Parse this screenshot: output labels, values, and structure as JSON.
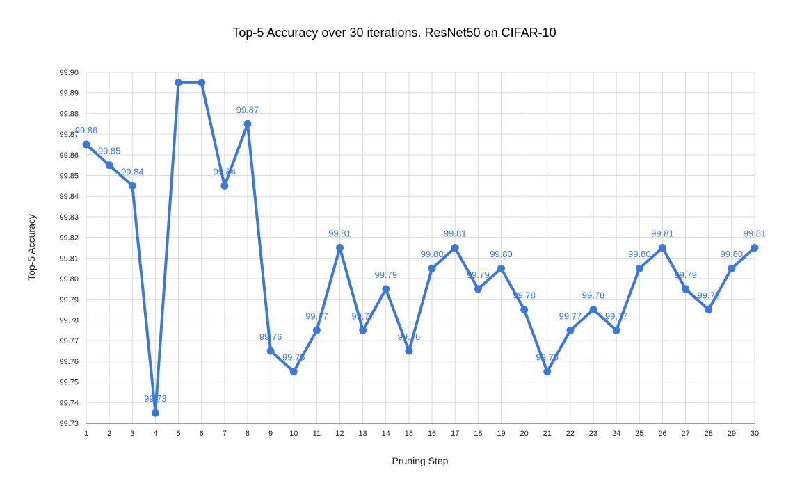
{
  "chart_data": {
    "type": "line",
    "title": "Top-5 Accuracy over 30 iterations. ResNet50 on CIFAR-10",
    "xlabel": "Pruning Step",
    "ylabel": "Top-5 Accuracy",
    "x": [
      1,
      2,
      3,
      4,
      5,
      6,
      7,
      8,
      9,
      10,
      11,
      12,
      13,
      14,
      15,
      16,
      17,
      18,
      19,
      20,
      21,
      22,
      23,
      24,
      25,
      26,
      27,
      28,
      29,
      30
    ],
    "series": [
      {
        "values": [
          99.865,
          99.855,
          99.845,
          99.735,
          99.895,
          99.895,
          99.845,
          99.875,
          99.765,
          99.755,
          99.775,
          99.815,
          99.775,
          99.795,
          99.765,
          99.805,
          99.815,
          99.795,
          99.805,
          99.785,
          99.755,
          99.775,
          99.785,
          99.775,
          99.805,
          99.815,
          99.795,
          99.785,
          99.805,
          99.815
        ],
        "labels": [
          "99.86",
          "99.85",
          "99.84",
          "99.73",
          "",
          "",
          "99.84",
          "99.87",
          "99.76",
          "99.75",
          "99.77",
          "99.81",
          "99.77",
          "99.79",
          "99.76",
          "99.80",
          "99.81",
          "99.79",
          "99.80",
          "99.78",
          "99.75",
          "99.77",
          "99.78",
          "99.77",
          "99.80",
          "99.81",
          "99.79",
          "99.78",
          "99.80",
          "99.81"
        ]
      }
    ],
    "ylim": [
      99.73,
      99.9
    ],
    "yticks": [
      "99.73",
      "99.74",
      "99.75",
      "99.76",
      "99.77",
      "99.78",
      "99.79",
      "99.80",
      "99.81",
      "99.82",
      "99.83",
      "99.84",
      "99.85",
      "99.86",
      "99.87",
      "99.88",
      "99.89",
      "99.90"
    ],
    "grid": true,
    "legend": "none",
    "colors": {
      "line": "#3c78d8",
      "label": "#3c78d8",
      "grid": "#d9d9d9",
      "axis": "#333333"
    }
  }
}
